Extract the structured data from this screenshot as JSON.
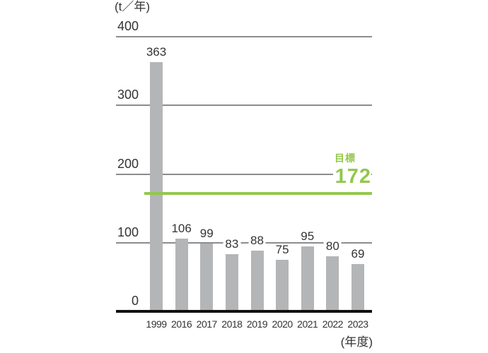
{
  "chart_data": {
    "type": "bar",
    "title": "",
    "y_axis_unit": "(t／年)",
    "x_axis_label": "(年度)",
    "categories": [
      "1999",
      "2016",
      "2017",
      "2018",
      "2019",
      "2020",
      "2021",
      "2022",
      "2023"
    ],
    "values": [
      363,
      106,
      99,
      83,
      88,
      75,
      95,
      80,
      69
    ],
    "y_ticks": [
      0,
      100,
      200,
      300,
      400
    ],
    "ylim": [
      0,
      400
    ],
    "grid": true,
    "legend": false,
    "target_line": {
      "label": "目標",
      "value": 172
    },
    "colors": {
      "bar": "#b4b5b7",
      "gridline": "#8c8c8e",
      "baseline": "#111111",
      "target": "#94c74d",
      "text": "#333333"
    }
  }
}
